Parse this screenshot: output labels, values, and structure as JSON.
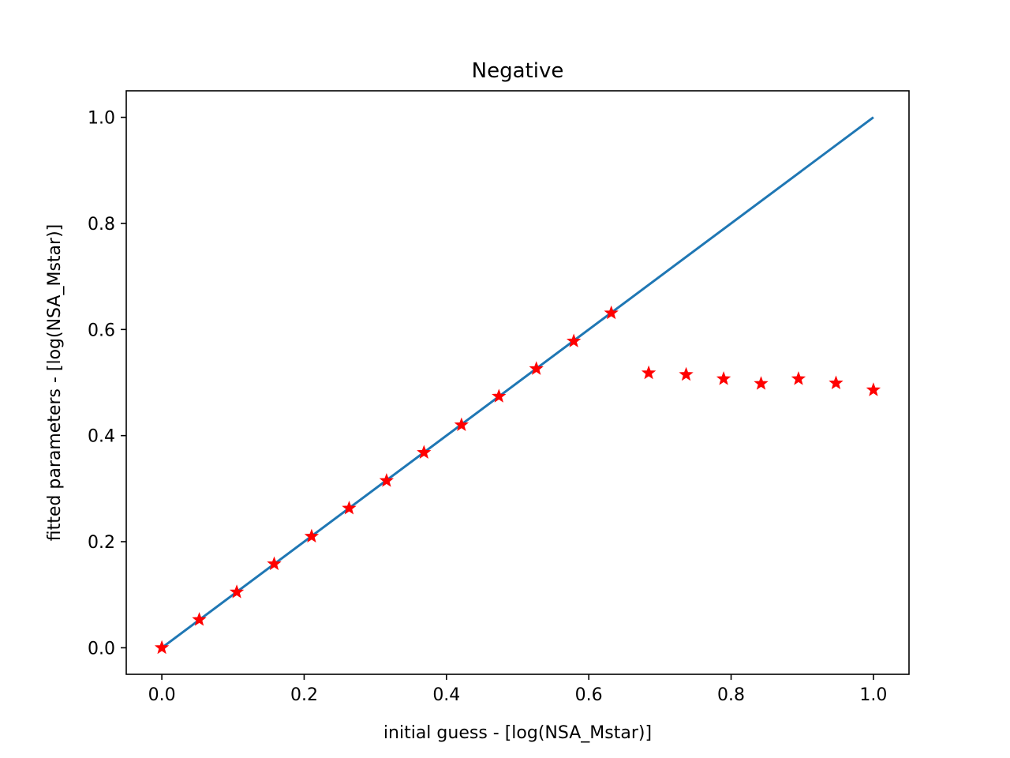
{
  "chart_data": {
    "type": "scatter",
    "title": "Negative",
    "xlabel": "initial guess - [log(NSA_Mstar)]",
    "ylabel": "fitted parameters - [log(NSA_Mstar)]",
    "xlim": [
      -0.05,
      1.05
    ],
    "ylim": [
      -0.05,
      1.05
    ],
    "xticks": [
      "0.0",
      "0.2",
      "0.4",
      "0.6",
      "0.8",
      "1.0"
    ],
    "yticks": [
      "0.0",
      "0.2",
      "0.4",
      "0.6",
      "0.8",
      "1.0"
    ],
    "grid": false,
    "series": [
      {
        "type": "line",
        "color": "#1f77b4",
        "x": [
          0.0,
          1.0
        ],
        "y": [
          0.0,
          1.0
        ]
      },
      {
        "type": "scatter",
        "marker": "star",
        "color": "#ff0000",
        "x": [
          0.0,
          0.0526,
          0.1053,
          0.1579,
          0.2105,
          0.2632,
          0.3158,
          0.3684,
          0.4211,
          0.4737,
          0.5263,
          0.5789,
          0.6316,
          0.6842,
          0.7368,
          0.7895,
          0.8421,
          0.8947,
          0.9474,
          1.0
        ],
        "y": [
          0.0,
          0.053,
          0.105,
          0.158,
          0.21,
          0.263,
          0.315,
          0.368,
          0.42,
          0.474,
          0.526,
          0.578,
          0.631,
          0.518,
          0.515,
          0.507,
          0.498,
          0.507,
          0.499,
          0.486
        ]
      }
    ]
  }
}
